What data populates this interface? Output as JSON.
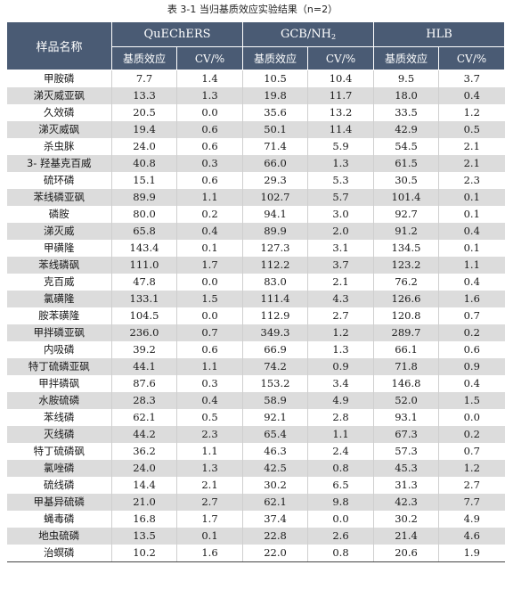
{
  "caption": "表 3-1 当归基质效应实验结果（n=2）",
  "header": {
    "name_col": "样品名称",
    "groups": [
      "QuEChERS",
      "GCB/NH",
      "HLB"
    ],
    "gcb_sub": "2",
    "sub_cols": [
      "基质效应",
      "CV/%",
      "基质效应",
      "CV/%",
      "基质效应",
      "CV/%"
    ]
  },
  "rows": [
    [
      "甲胺磷",
      "7.7",
      "1.4",
      "10.5",
      "10.4",
      "9.5",
      "3.7"
    ],
    [
      "涕灭威亚砜",
      "13.3",
      "1.3",
      "19.8",
      "11.7",
      "18.0",
      "0.4"
    ],
    [
      "久效磷",
      "20.5",
      "0.0",
      "35.6",
      "13.2",
      "33.5",
      "1.2"
    ],
    [
      "涕灭威砜",
      "19.4",
      "0.6",
      "50.1",
      "11.4",
      "42.9",
      "0.5"
    ],
    [
      "杀虫脒",
      "24.0",
      "0.6",
      "71.4",
      "5.9",
      "54.5",
      "2.1"
    ],
    [
      "3- 羟基克百威",
      "40.8",
      "0.3",
      "66.0",
      "1.3",
      "61.5",
      "2.1"
    ],
    [
      "硫环磷",
      "15.1",
      "0.6",
      "29.3",
      "5.3",
      "30.5",
      "2.3"
    ],
    [
      "苯线磷亚砜",
      "89.9",
      "1.1",
      "102.7",
      "5.7",
      "101.4",
      "0.1"
    ],
    [
      "磷胺",
      "80.0",
      "0.2",
      "94.1",
      "3.0",
      "92.7",
      "0.1"
    ],
    [
      "涕灭威",
      "65.8",
      "0.4",
      "89.9",
      "2.0",
      "91.2",
      "0.4"
    ],
    [
      "甲磺隆",
      "143.4",
      "0.1",
      "127.3",
      "3.1",
      "134.5",
      "0.1"
    ],
    [
      "苯线磷砜",
      "111.0",
      "1.7",
      "112.2",
      "3.7",
      "123.2",
      "1.1"
    ],
    [
      "克百威",
      "47.8",
      "0.0",
      "83.0",
      "2.1",
      "76.2",
      "0.4"
    ],
    [
      "氯磺隆",
      "133.1",
      "1.5",
      "111.4",
      "4.3",
      "126.6",
      "1.6"
    ],
    [
      "胺苯磺隆",
      "104.5",
      "0.0",
      "112.9",
      "2.7",
      "120.8",
      "0.7"
    ],
    [
      "甲拌磷亚砜",
      "236.0",
      "0.7",
      "349.3",
      "1.2",
      "289.7",
      "0.2"
    ],
    [
      "内吸磷",
      "39.2",
      "0.6",
      "66.9",
      "1.3",
      "66.1",
      "0.6"
    ],
    [
      "特丁硫磷亚砜",
      "44.1",
      "1.1",
      "74.2",
      "0.9",
      "71.8",
      "0.9"
    ],
    [
      "甲拌磷砜",
      "87.6",
      "0.3",
      "153.2",
      "3.4",
      "146.8",
      "0.4"
    ],
    [
      "水胺硫磷",
      "28.3",
      "0.4",
      "58.9",
      "4.9",
      "52.0",
      "1.5"
    ],
    [
      "苯线磷",
      "62.1",
      "0.5",
      "92.1",
      "2.8",
      "93.1",
      "0.0"
    ],
    [
      "灭线磷",
      "44.2",
      "2.3",
      "65.4",
      "1.1",
      "67.3",
      "0.2"
    ],
    [
      "特丁硫磷砜",
      "36.2",
      "1.1",
      "46.3",
      "2.4",
      "57.3",
      "0.7"
    ],
    [
      "氯唑磷",
      "24.0",
      "1.3",
      "42.5",
      "0.8",
      "45.3",
      "1.2"
    ],
    [
      "硫线磷",
      "14.4",
      "2.1",
      "30.2",
      "6.5",
      "31.3",
      "2.7"
    ],
    [
      "甲基异硫磷",
      "21.0",
      "2.7",
      "62.1",
      "9.8",
      "42.3",
      "7.7"
    ],
    [
      "蝇毒磷",
      "16.8",
      "1.7",
      "37.4",
      "0.0",
      "30.2",
      "4.9"
    ],
    [
      "地虫硫磷",
      "13.5",
      "0.1",
      "22.8",
      "2.6",
      "21.4",
      "4.6"
    ],
    [
      "治螟磷",
      "10.2",
      "1.6",
      "22.0",
      "0.8",
      "20.6",
      "1.9"
    ]
  ]
}
